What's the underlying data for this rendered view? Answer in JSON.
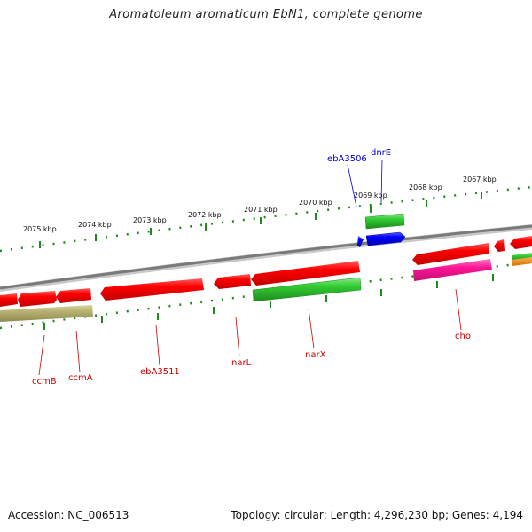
{
  "title": "Aromatoleum aromaticum EbN1, complete genome",
  "footer": {
    "accession": "Accession: NC_006513",
    "summary": "Topology: circular; Length: 4,296,230 bp; Genes: 4,194"
  },
  "colors": {
    "backbone": "#8a8a8a",
    "tick": "#1f8a1f",
    "label_red": "#cc0000",
    "label_blue": "#0000cc"
  },
  "scale_labels": [
    "2075 kbp",
    "2074 kbp",
    "2073 kbp",
    "2072 kbp",
    "2071 kbp",
    "2070 kbp",
    "2069 kbp",
    "2068 kbp",
    "2067 kbp"
  ],
  "features_top": [
    {
      "name": "ebA3506",
      "color": "#0000ff",
      "strand": "-"
    },
    {
      "name": "dnrE",
      "color": "#33cc33",
      "strand": "+"
    }
  ],
  "features_bottom": [
    {
      "name": "ccmB",
      "color": "#ff0000"
    },
    {
      "name": "ccmA",
      "color": "#ff0000"
    },
    {
      "name": "ebA3511",
      "color": "#ff0000"
    },
    {
      "name": "narL",
      "color": "#ff0000"
    },
    {
      "name": "narX",
      "color": "#33cc33"
    },
    {
      "name": "cho",
      "color": "#ff0000"
    }
  ],
  "legend_feature_colors": [
    "#ff0000",
    "#33cc33",
    "#0000ff",
    "#ff1493",
    "#b5b070",
    "#ff8c00"
  ]
}
